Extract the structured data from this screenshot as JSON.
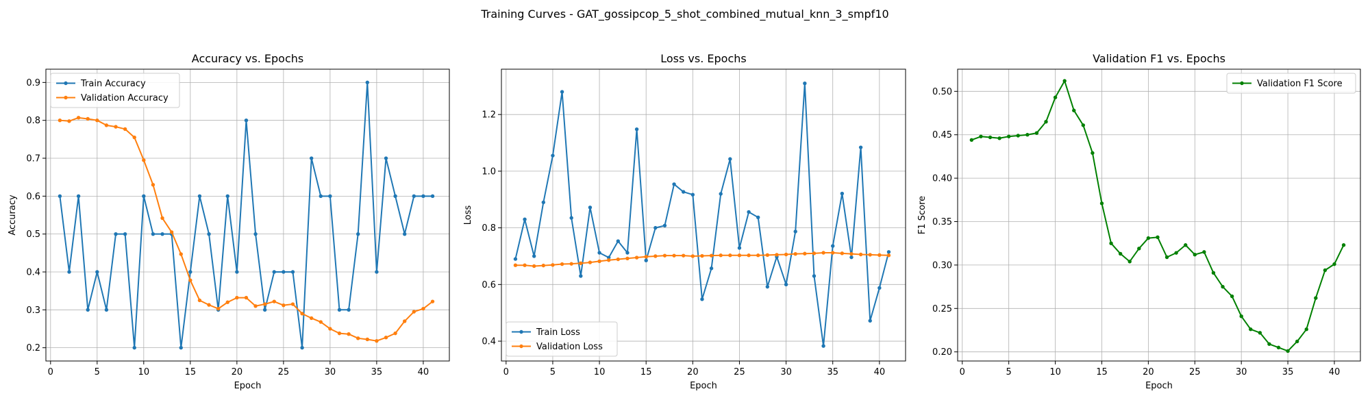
{
  "figure_title": "Training Curves - GAT_gossipcop_5_shot_combined_mutual_knn_3_smpf10",
  "chart_data": [
    {
      "type": "line",
      "title": "Accuracy vs. Epochs",
      "xlabel": "Epoch",
      "ylabel": "Accuracy",
      "xlim": [
        -0.5,
        42.8
      ],
      "ylim": [
        0.165,
        0.935
      ],
      "xticks": [
        0,
        5,
        10,
        15,
        20,
        25,
        30,
        35,
        40
      ],
      "yticks": [
        0.2,
        0.3,
        0.4,
        0.5,
        0.6,
        0.7,
        0.8,
        0.9
      ],
      "ytick_labels": [
        "0.2",
        "0.3",
        "0.4",
        "0.5",
        "0.6",
        "0.7",
        "0.8",
        "0.9"
      ],
      "grid": true,
      "legend_loc": "upper left",
      "x": [
        1,
        2,
        3,
        4,
        5,
        6,
        7,
        8,
        9,
        10,
        11,
        12,
        13,
        14,
        15,
        16,
        17,
        18,
        19,
        20,
        21,
        22,
        23,
        24,
        25,
        26,
        27,
        28,
        29,
        30,
        31,
        32,
        33,
        34,
        35,
        36,
        37,
        38,
        39,
        40,
        41
      ],
      "series": [
        {
          "name": "Train Accuracy",
          "color": "#1f77b4",
          "values": [
            0.6,
            0.4,
            0.6,
            0.3,
            0.4,
            0.3,
            0.5,
            0.5,
            0.2,
            0.6,
            0.5,
            0.5,
            0.5,
            0.2,
            0.4,
            0.6,
            0.5,
            0.3,
            0.6,
            0.4,
            0.8,
            0.5,
            0.3,
            0.4,
            0.4,
            0.4,
            0.2,
            0.7,
            0.6,
            0.6,
            0.3,
            0.3,
            0.5,
            0.9,
            0.4,
            0.7,
            0.6,
            0.5,
            0.6,
            0.6,
            0.6
          ]
        },
        {
          "name": "Validation Accuracy",
          "color": "#ff7f0e",
          "values": [
            0.8,
            0.798,
            0.807,
            0.804,
            0.8,
            0.787,
            0.783,
            0.777,
            0.755,
            0.695,
            0.63,
            0.542,
            0.505,
            0.447,
            0.378,
            0.325,
            0.313,
            0.303,
            0.32,
            0.332,
            0.332,
            0.31,
            0.315,
            0.322,
            0.312,
            0.315,
            0.29,
            0.278,
            0.268,
            0.25,
            0.238,
            0.236,
            0.225,
            0.222,
            0.218,
            0.227,
            0.238,
            0.27,
            0.295,
            0.303,
            0.322
          ]
        }
      ]
    },
    {
      "type": "line",
      "title": "Loss vs. Epochs",
      "xlabel": "Epoch",
      "ylabel": "Loss",
      "xlim": [
        -0.5,
        42.8
      ],
      "ylim": [
        0.33,
        1.36
      ],
      "xticks": [
        0,
        5,
        10,
        15,
        20,
        25,
        30,
        35,
        40
      ],
      "yticks": [
        0.4,
        0.6,
        0.8,
        1.0,
        1.2
      ],
      "ytick_labels": [
        "0.4",
        "0.6",
        "0.8",
        "1.0",
        "1.2"
      ],
      "grid": true,
      "legend_loc": "lower left",
      "x": [
        1,
        2,
        3,
        4,
        5,
        6,
        7,
        8,
        9,
        10,
        11,
        12,
        13,
        14,
        15,
        16,
        17,
        18,
        19,
        20,
        21,
        22,
        23,
        24,
        25,
        26,
        27,
        28,
        29,
        30,
        31,
        32,
        33,
        34,
        35,
        36,
        37,
        38,
        39,
        40,
        41
      ],
      "series": [
        {
          "name": "Train Loss",
          "color": "#1f77b4",
          "values": [
            0.69,
            0.83,
            0.7,
            0.89,
            1.055,
            1.28,
            0.835,
            0.63,
            0.872,
            0.712,
            0.695,
            0.753,
            0.712,
            1.148,
            0.685,
            0.8,
            0.808,
            0.954,
            0.927,
            0.917,
            0.548,
            0.657,
            0.92,
            1.043,
            0.729,
            0.856,
            0.837,
            0.592,
            0.698,
            0.6,
            0.787,
            1.31,
            0.63,
            0.383,
            0.736,
            0.921,
            0.696,
            1.084,
            0.472,
            0.588,
            0.715
          ]
        },
        {
          "name": "Validation Loss",
          "color": "#ff7f0e",
          "values": [
            0.668,
            0.668,
            0.665,
            0.667,
            0.669,
            0.672,
            0.673,
            0.675,
            0.678,
            0.682,
            0.686,
            0.689,
            0.692,
            0.695,
            0.698,
            0.7,
            0.702,
            0.702,
            0.702,
            0.7,
            0.701,
            0.702,
            0.703,
            0.703,
            0.703,
            0.703,
            0.703,
            0.704,
            0.705,
            0.706,
            0.708,
            0.709,
            0.71,
            0.712,
            0.712,
            0.71,
            0.708,
            0.706,
            0.705,
            0.704,
            0.703
          ]
        }
      ]
    },
    {
      "type": "line",
      "title": "Validation F1 vs. Epochs",
      "xlabel": "Epoch",
      "ylabel": "F1 Score",
      "xlim": [
        -0.5,
        42.8
      ],
      "ylim": [
        0.1895,
        0.5255
      ],
      "xticks": [
        0,
        5,
        10,
        15,
        20,
        25,
        30,
        35,
        40
      ],
      "yticks": [
        0.2,
        0.25,
        0.3,
        0.35,
        0.4,
        0.45,
        0.5
      ],
      "ytick_labels": [
        "0.20",
        "0.25",
        "0.30",
        "0.35",
        "0.40",
        "0.45",
        "0.50"
      ],
      "grid": true,
      "legend_loc": "upper right",
      "x": [
        1,
        2,
        3,
        4,
        5,
        6,
        7,
        8,
        9,
        10,
        11,
        12,
        13,
        14,
        15,
        16,
        17,
        18,
        19,
        20,
        21,
        22,
        23,
        24,
        25,
        26,
        27,
        28,
        29,
        30,
        31,
        32,
        33,
        34,
        35,
        36,
        37,
        38,
        39,
        40,
        41
      ],
      "series": [
        {
          "name": "Validation F1 Score",
          "color": "#008000",
          "values": [
            0.444,
            0.448,
            0.447,
            0.446,
            0.448,
            0.449,
            0.45,
            0.452,
            0.465,
            0.493,
            0.512,
            0.478,
            0.461,
            0.429,
            0.371,
            0.325,
            0.313,
            0.304,
            0.319,
            0.331,
            0.332,
            0.309,
            0.314,
            0.323,
            0.312,
            0.315,
            0.291,
            0.275,
            0.264,
            0.241,
            0.226,
            0.222,
            0.209,
            0.205,
            0.201,
            0.212,
            0.226,
            0.262,
            0.294,
            0.301,
            0.323
          ]
        }
      ]
    }
  ]
}
